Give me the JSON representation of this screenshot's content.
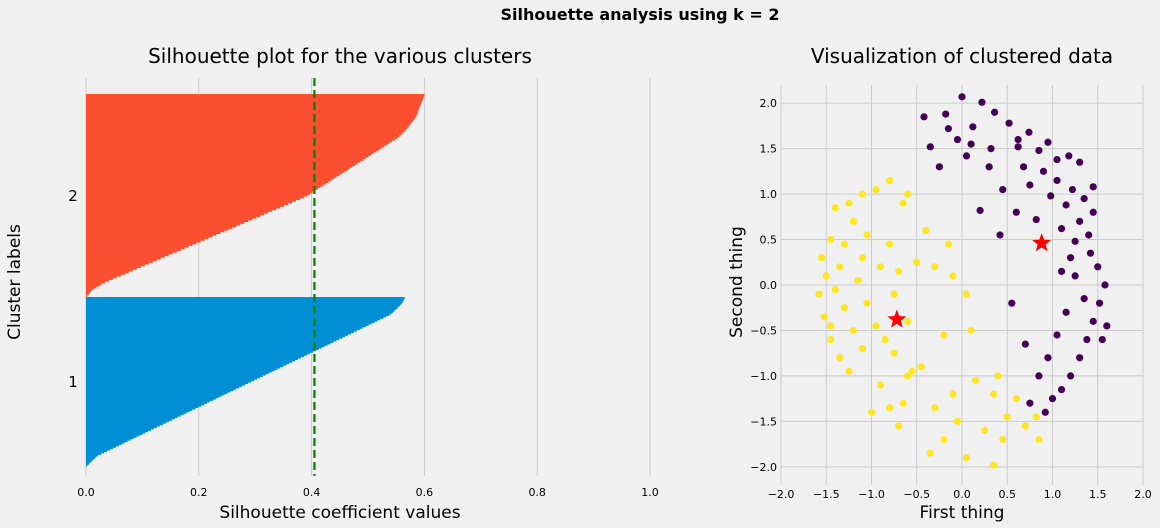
{
  "suptitle": "Silhouette analysis using k = 2",
  "chart_data": [
    {
      "type": "bar",
      "subtype": "silhouette",
      "title": "Silhouette plot for the various clusters",
      "xlabel": "Silhouette coefficient values",
      "ylabel": "Cluster labels",
      "xlim": [
        0.0,
        1.0
      ],
      "xticks": [
        "0.0",
        "0.2",
        "0.4",
        "0.6",
        "0.8",
        "1.0"
      ],
      "average_silhouette": 0.405,
      "average_line_color": "#008000",
      "grid": true,
      "series": [
        {
          "name": "1",
          "color": "#008fd5",
          "sorted_values_low_to_high": [
            0.0,
            0.01,
            0.02,
            0.04,
            0.06,
            0.08,
            0.1,
            0.12,
            0.14,
            0.16,
            0.18,
            0.2,
            0.22,
            0.24,
            0.26,
            0.28,
            0.3,
            0.32,
            0.34,
            0.36,
            0.38,
            0.4,
            0.42,
            0.44,
            0.46,
            0.48,
            0.5,
            0.52,
            0.54,
            0.55,
            0.56,
            0.565
          ]
        },
        {
          "name": "2",
          "color": "#fc4f30",
          "sorted_values_low_to_high": [
            0.0,
            0.01,
            0.03,
            0.06,
            0.09,
            0.12,
            0.15,
            0.18,
            0.21,
            0.24,
            0.27,
            0.3,
            0.33,
            0.36,
            0.39,
            0.41,
            0.43,
            0.45,
            0.47,
            0.49,
            0.51,
            0.53,
            0.55,
            0.565,
            0.575,
            0.585,
            0.59,
            0.595,
            0.6
          ]
        }
      ]
    },
    {
      "type": "scatter",
      "title": "Visualization of clustered data",
      "xlabel": "First thing",
      "ylabel": "Second thing",
      "xlim": [
        -2.0,
        2.0
      ],
      "ylim": [
        -2.2,
        2.2
      ],
      "xticks": [
        "−2.0",
        "−1.5",
        "−1.0",
        "−0.5",
        "0.0",
        "0.5",
        "1.0",
        "1.5",
        "2.0"
      ],
      "yticks": [
        "−2.0",
        "−1.5",
        "−1.0",
        "−0.5",
        "0.0",
        "0.5",
        "1.0",
        "1.5",
        "2.0"
      ],
      "grid": true,
      "series": [
        {
          "color": "#440154",
          "points": [
            [
              0.0,
              2.07
            ],
            [
              -0.42,
              1.85
            ],
            [
              -0.18,
              1.88
            ],
            [
              0.22,
              2.01
            ],
            [
              0.36,
              1.9
            ],
            [
              0.52,
              1.78
            ],
            [
              0.74,
              1.68
            ],
            [
              0.12,
              1.74
            ],
            [
              -0.05,
              1.6
            ],
            [
              -0.35,
              1.52
            ],
            [
              -0.15,
              1.72
            ],
            [
              0.1,
              1.55
            ],
            [
              0.32,
              1.5
            ],
            [
              0.62,
              1.52
            ],
            [
              0.85,
              1.48
            ],
            [
              0.95,
              1.57
            ],
            [
              1.18,
              1.42
            ],
            [
              1.3,
              1.35
            ],
            [
              0.68,
              1.3
            ],
            [
              0.9,
              1.25
            ],
            [
              1.05,
              1.15
            ],
            [
              1.22,
              1.05
            ],
            [
              1.35,
              0.95
            ],
            [
              1.45,
              0.8
            ],
            [
              0.45,
              1.05
            ],
            [
              0.75,
              1.1
            ],
            [
              0.98,
              0.98
            ],
            [
              1.15,
              0.88
            ],
            [
              1.3,
              0.7
            ],
            [
              1.4,
              0.55
            ],
            [
              0.6,
              0.8
            ],
            [
              0.82,
              0.72
            ],
            [
              1.1,
              0.62
            ],
            [
              1.25,
              0.48
            ],
            [
              1.42,
              0.35
            ],
            [
              1.5,
              0.2
            ],
            [
              1.58,
              0.0
            ],
            [
              1.52,
              -0.2
            ],
            [
              1.45,
              -0.4
            ],
            [
              1.38,
              -0.6
            ],
            [
              1.3,
              -0.8
            ],
            [
              1.2,
              -1.0
            ],
            [
              1.1,
              -1.15
            ],
            [
              1.0,
              -1.25
            ],
            [
              0.92,
              -1.4
            ],
            [
              1.35,
              -0.15
            ],
            [
              1.25,
              0.1
            ],
            [
              1.15,
              -0.3
            ],
            [
              1.05,
              -0.55
            ],
            [
              0.95,
              -0.8
            ],
            [
              0.85,
              -1.0
            ],
            [
              1.2,
              0.3
            ],
            [
              1.1,
              0.15
            ],
            [
              0.55,
              -0.2
            ],
            [
              0.7,
              -0.65
            ],
            [
              0.75,
              -1.3
            ],
            [
              0.3,
              1.3
            ],
            [
              0.05,
              1.42
            ],
            [
              -0.25,
              1.3
            ],
            [
              0.2,
              0.82
            ],
            [
              0.42,
              0.55
            ],
            [
              1.45,
              1.08
            ],
            [
              1.05,
              1.38
            ],
            [
              0.62,
              1.6
            ],
            [
              0.88,
              0.45
            ],
            [
              1.55,
              -0.6
            ],
            [
              1.6,
              -0.45
            ]
          ]
        },
        {
          "color": "#fde725",
          "points": [
            [
              -1.1,
              1.0
            ],
            [
              -0.95,
              1.05
            ],
            [
              -0.8,
              1.15
            ],
            [
              -0.65,
              0.9
            ],
            [
              -0.6,
              1.0
            ],
            [
              -1.45,
              0.5
            ],
            [
              -1.55,
              0.3
            ],
            [
              -1.5,
              0.1
            ],
            [
              -1.58,
              -0.1
            ],
            [
              -1.52,
              -0.35
            ],
            [
              -1.45,
              -0.6
            ],
            [
              -1.35,
              -0.8
            ],
            [
              -1.25,
              -0.95
            ],
            [
              -1.2,
              0.7
            ],
            [
              -1.3,
              0.45
            ],
            [
              -1.35,
              0.2
            ],
            [
              -1.4,
              -0.05
            ],
            [
              -1.3,
              -0.25
            ],
            [
              -1.2,
              -0.5
            ],
            [
              -1.1,
              -0.7
            ],
            [
              -1.05,
              0.55
            ],
            [
              -1.1,
              0.3
            ],
            [
              -1.15,
              0.05
            ],
            [
              -1.05,
              -0.2
            ],
            [
              -0.95,
              -0.45
            ],
            [
              -0.9,
              0.2
            ],
            [
              -0.8,
              0.45
            ],
            [
              -0.7,
              0.15
            ],
            [
              -0.75,
              -0.1
            ],
            [
              -0.85,
              -0.6
            ],
            [
              -0.6,
              -0.4
            ],
            [
              -0.5,
              0.25
            ],
            [
              -0.4,
              0.6
            ],
            [
              -0.3,
              0.2
            ],
            [
              -0.1,
              0.1
            ],
            [
              0.05,
              -0.1
            ],
            [
              -0.2,
              -0.55
            ],
            [
              -0.1,
              -1.2
            ],
            [
              -0.05,
              -1.5
            ],
            [
              -0.2,
              -1.7
            ],
            [
              -0.35,
              -1.85
            ],
            [
              0.05,
              -1.9
            ],
            [
              0.35,
              -1.98
            ],
            [
              0.25,
              -1.6
            ],
            [
              0.5,
              -1.45
            ],
            [
              0.6,
              -1.25
            ],
            [
              0.45,
              -1.7
            ],
            [
              0.7,
              -1.55
            ],
            [
              0.82,
              -1.45
            ],
            [
              -0.65,
              -1.3
            ],
            [
              -0.7,
              -1.55
            ],
            [
              -0.8,
              -1.35
            ],
            [
              -0.6,
              -1.0
            ],
            [
              -0.75,
              -0.75
            ],
            [
              -0.9,
              -1.1
            ],
            [
              -1.0,
              -1.4
            ],
            [
              0.15,
              -1.05
            ],
            [
              0.35,
              -1.2
            ],
            [
              -0.45,
              -0.9
            ],
            [
              0.1,
              -0.5
            ],
            [
              -0.15,
              0.45
            ],
            [
              -1.25,
              0.9
            ],
            [
              -1.4,
              0.85
            ],
            [
              -1.45,
              -0.45
            ],
            [
              -0.55,
              -0.95
            ],
            [
              0.4,
              -1.0
            ],
            [
              0.85,
              -1.7
            ],
            [
              -0.3,
              -1.35
            ]
          ]
        }
      ],
      "centers": [
        {
          "x": -0.72,
          "y": -0.38,
          "color": "#ff0000",
          "marker": "star"
        },
        {
          "x": 0.88,
          "y": 0.46,
          "color": "#ff0000",
          "marker": "star"
        }
      ]
    }
  ]
}
